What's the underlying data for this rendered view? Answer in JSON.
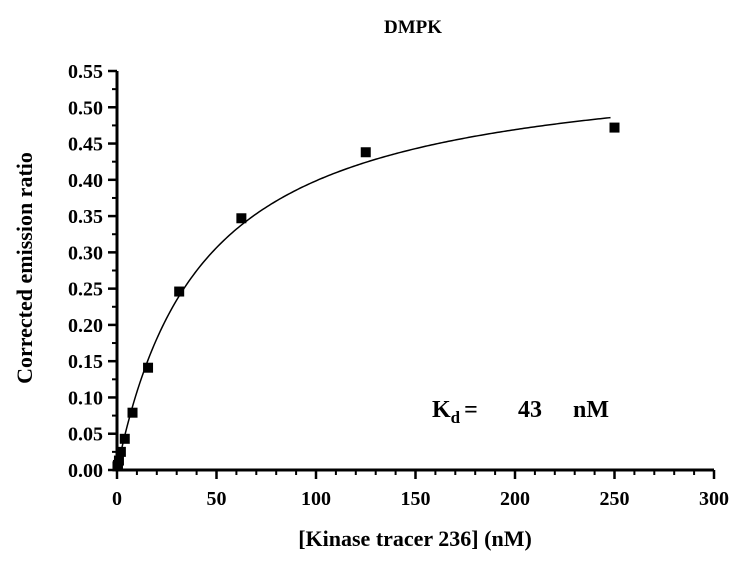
{
  "chart_data": {
    "type": "scatter",
    "title": "DMPK",
    "xlabel": "[Kinase tracer 236] (nM)",
    "ylabel": "Corrected emission ratio",
    "xlim": [
      0,
      300
    ],
    "ylim": [
      0,
      0.55
    ],
    "x_ticks": [
      "0",
      "50",
      "100",
      "150",
      "200",
      "250",
      "300"
    ],
    "y_ticks": [
      "0.00",
      "0.05",
      "0.10",
      "0.15",
      "0.20",
      "0.25",
      "0.30",
      "0.35",
      "0.40",
      "0.45",
      "0.50",
      "0.55"
    ],
    "x_tick_values": [
      0,
      50,
      100,
      150,
      200,
      250,
      300
    ],
    "y_tick_values": [
      0,
      0.05,
      0.1,
      0.15,
      0.2,
      0.25,
      0.3,
      0.35,
      0.4,
      0.45,
      0.5,
      0.55
    ],
    "points": [
      {
        "x": 0.24,
        "y": 0.005
      },
      {
        "x": 0.49,
        "y": 0.007
      },
      {
        "x": 0.98,
        "y": 0.013
      },
      {
        "x": 1.95,
        "y": 0.025
      },
      {
        "x": 3.9,
        "y": 0.043
      },
      {
        "x": 7.8,
        "y": 0.079
      },
      {
        "x": 15.6,
        "y": 0.141
      },
      {
        "x": 31.25,
        "y": 0.246
      },
      {
        "x": 62.5,
        "y": 0.347
      },
      {
        "x": 125,
        "y": 0.438
      },
      {
        "x": 250,
        "y": 0.472
      }
    ],
    "fit": {
      "model": "one-site binding",
      "bmax": 0.57,
      "kd": 43,
      "x_range": [
        0,
        248
      ]
    },
    "annotation": {
      "prefix": "K",
      "subscript": "d",
      "equals": "=",
      "value": "43",
      "unit": "nM"
    }
  }
}
